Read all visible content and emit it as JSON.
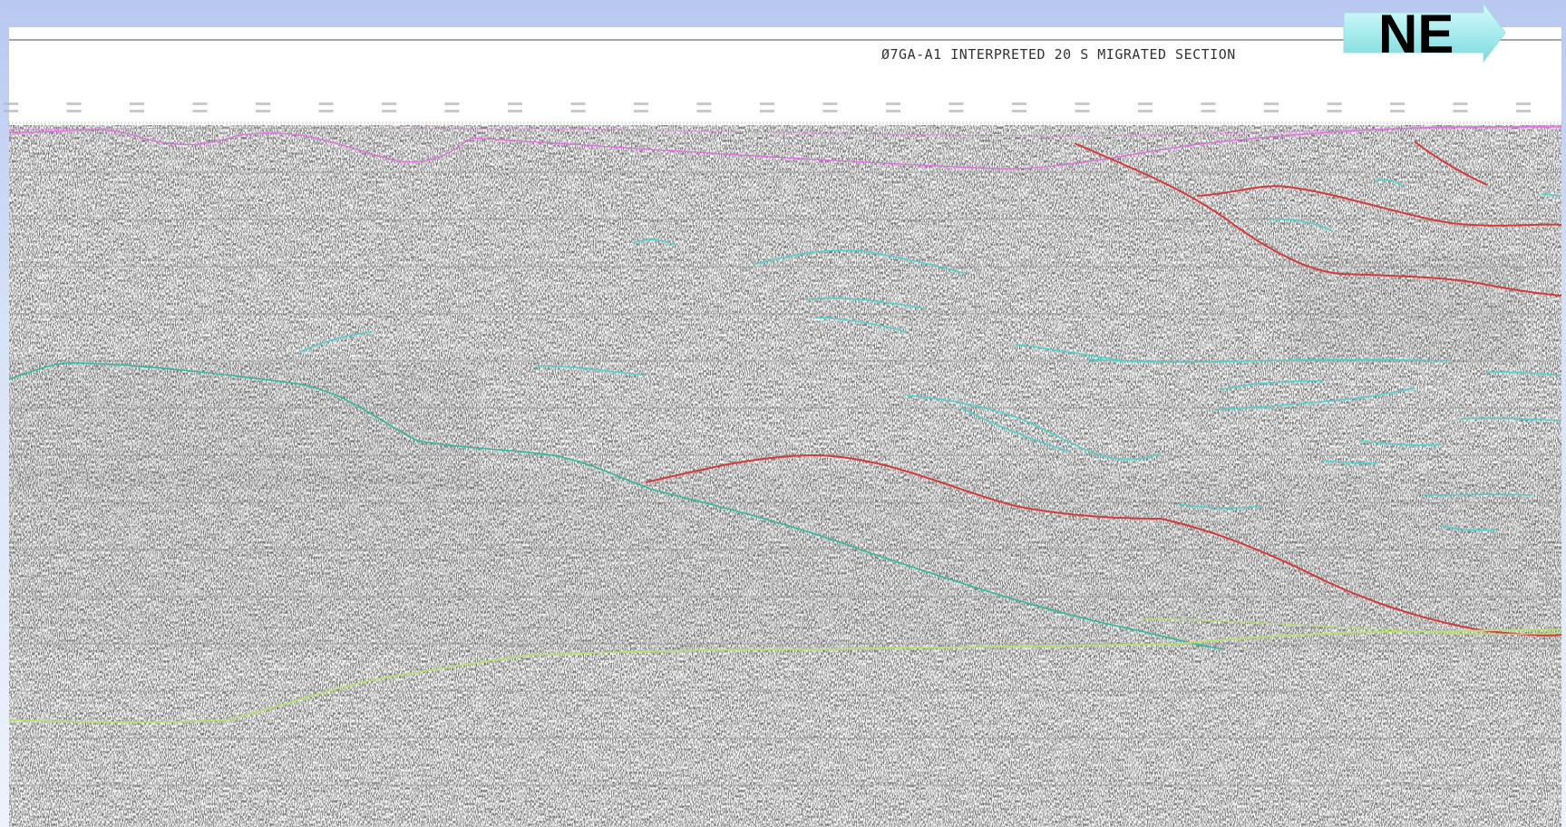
{
  "direction_label": "NE",
  "section_title": "Ø7GA-A1 INTERPRETED 20 S MIGRATED SECTION",
  "colors": {
    "background_top": "#b8c8f0",
    "arrow": "#a8ecee",
    "fault": "#d43a3a",
    "reflector_cyan": "#4fd0c8",
    "reflector_teal": "#2fb89a",
    "reflector_green": "#b8e070",
    "topography": "#e070e0",
    "time_lines": "#9a9a9a"
  },
  "icons": [
    "ne-arrow-icon"
  ]
}
